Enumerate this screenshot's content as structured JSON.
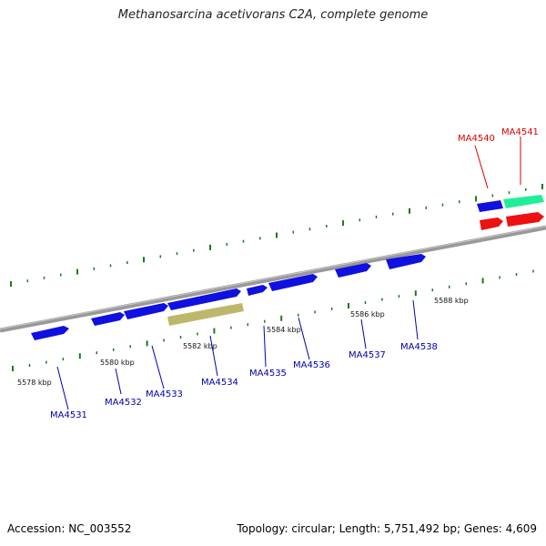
{
  "title": "Methanosarcina acetivorans C2A, complete genome",
  "footer": {
    "accession": "Accession: NC_003552",
    "summary": "Topology: circular; Length: 5,751,492 bp; Genes: 4,609"
  },
  "colors": {
    "gene_blue": "#1010e0",
    "gene_red": "#ee1111",
    "gene_green": "#22ee99",
    "gene_khaki": "#bdb76b",
    "backbone": "#888888",
    "tick": "#1a7a1a",
    "label_blue": "#0000aa",
    "label_red": "#dd0000"
  },
  "scale_ticks": [
    {
      "label": "5578 kbp"
    },
    {
      "label": "5580 kbp"
    },
    {
      "label": "5582 kbp"
    },
    {
      "label": "5584 kbp"
    },
    {
      "label": "5586 kbp"
    },
    {
      "label": "5588 kbp"
    }
  ],
  "genes": [
    {
      "id": "MA4531",
      "strand": "-",
      "color": "blue"
    },
    {
      "id": "MA4532",
      "strand": "-",
      "color": "blue"
    },
    {
      "id": "MA4533",
      "strand": "-",
      "color": "blue"
    },
    {
      "id": "MA4534",
      "strand": "-",
      "color": "blue"
    },
    {
      "id": "MA4535",
      "strand": "-",
      "color": "blue"
    },
    {
      "id": "MA4536",
      "strand": "+",
      "color": "blue"
    },
    {
      "id": "MA4537",
      "strand": "+",
      "color": "blue"
    },
    {
      "id": "MA4538",
      "strand": "+",
      "color": "blue"
    },
    {
      "id": "MA4540",
      "strand": "+",
      "color": "blue"
    },
    {
      "id": "MA4541",
      "strand": "+",
      "color": "green"
    }
  ],
  "features": [
    {
      "name": "khaki-feature",
      "color": "khaki"
    },
    {
      "name": "red-feature-1",
      "color": "red"
    },
    {
      "name": "red-feature-2",
      "color": "red"
    }
  ]
}
